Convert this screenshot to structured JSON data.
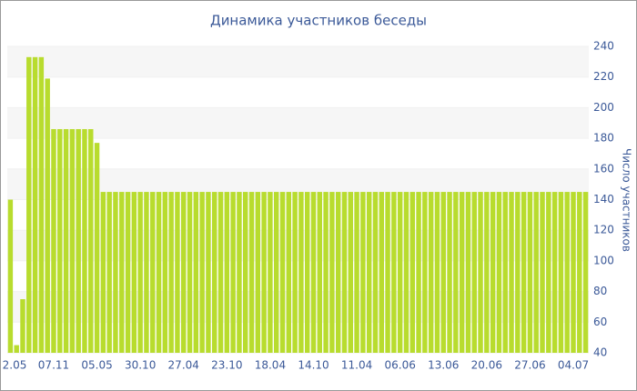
{
  "chart_data": {
    "type": "bar",
    "title": "Динамика участников беседы",
    "y_axis_label": "Число участников",
    "categories": [
      "2.05",
      null,
      null,
      null,
      null,
      null,
      null,
      "07.11",
      null,
      null,
      null,
      null,
      null,
      null,
      "05.05",
      null,
      null,
      null,
      null,
      null,
      null,
      "30.10",
      null,
      null,
      null,
      null,
      null,
      null,
      "27.04",
      null,
      null,
      null,
      null,
      null,
      null,
      "23.10",
      null,
      null,
      null,
      null,
      null,
      null,
      "18.04",
      null,
      null,
      null,
      null,
      null,
      null,
      "14.10",
      null,
      null,
      null,
      null,
      null,
      null,
      "11.04",
      null,
      null,
      null,
      null,
      null,
      null,
      "06.06",
      null,
      null,
      null,
      null,
      null,
      null,
      "13.06",
      null,
      null,
      null,
      null,
      null,
      null,
      "20.06",
      null,
      null,
      null,
      null,
      null,
      null,
      "27.06",
      null,
      null,
      null,
      null,
      null,
      null,
      "04.07",
      null,
      null
    ],
    "values": [
      140,
      45,
      75,
      233,
      233,
      233,
      219,
      186,
      186,
      186,
      186,
      186,
      186,
      186,
      177,
      145,
      145,
      145,
      145,
      145,
      145,
      145,
      145,
      145,
      145,
      145,
      145,
      145,
      145,
      145,
      145,
      145,
      145,
      145,
      145,
      145,
      145,
      145,
      145,
      145,
      145,
      145,
      145,
      145,
      145,
      145,
      145,
      145,
      145,
      145,
      145,
      145,
      145,
      145,
      145,
      145,
      145,
      145,
      145,
      145,
      145,
      145,
      145,
      145,
      145,
      145,
      145,
      145,
      145,
      145,
      145,
      145,
      145,
      145,
      145,
      145,
      145,
      145,
      145,
      145,
      145,
      145,
      145,
      145,
      145,
      145,
      145,
      145,
      145,
      145,
      145,
      145,
      145,
      145
    ],
    "color": "#b8dc2e",
    "ylim": [
      40,
      240
    ],
    "yticks": [
      40,
      60,
      80,
      100,
      120,
      140,
      160,
      180,
      200,
      220,
      240
    ],
    "grid": true
  }
}
